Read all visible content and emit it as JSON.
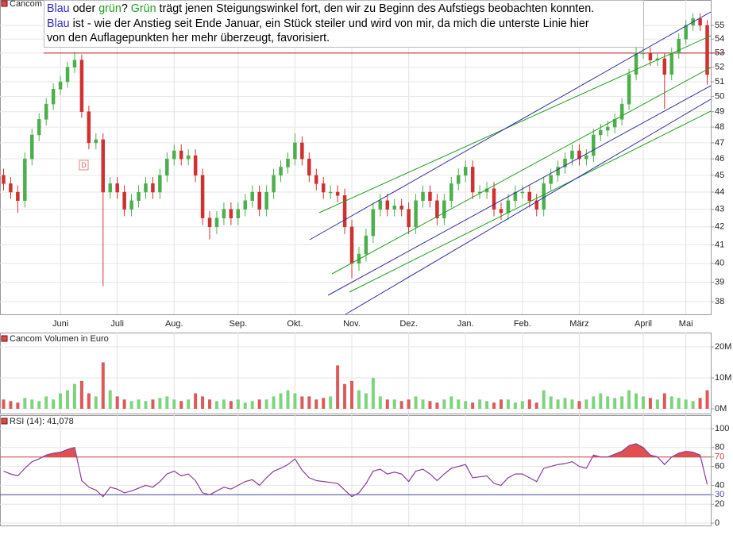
{
  "chart_data": [
    {
      "type": "candlestick",
      "title": "Cancom",
      "log_scale": true,
      "grid": true,
      "up_color": "#4caf4c",
      "down_color": "#d03030",
      "categories": [
        null,
        null,
        null,
        null,
        null,
        null,
        null,
        null,
        "Juni",
        null,
        null,
        null,
        null,
        null,
        null,
        null,
        "Juli",
        null,
        null,
        null,
        null,
        null,
        null,
        null,
        "Aug.",
        null,
        null,
        null,
        null,
        null,
        null,
        null,
        null,
        "Sep.",
        null,
        null,
        null,
        null,
        null,
        null,
        null,
        "Okt.",
        null,
        null,
        null,
        null,
        null,
        null,
        null,
        "Nov.",
        null,
        null,
        null,
        null,
        null,
        null,
        null,
        "Dez.",
        null,
        null,
        null,
        null,
        null,
        null,
        null,
        "Jan.",
        null,
        null,
        null,
        null,
        null,
        null,
        null,
        "Feb.",
        null,
        null,
        null,
        null,
        null,
        null,
        null,
        "März",
        null,
        null,
        null,
        null,
        null,
        null,
        null,
        null,
        "April",
        null,
        null,
        null,
        null,
        null,
        "Mai",
        null,
        null,
        null
      ],
      "open": [
        45,
        44.5,
        44,
        43.5,
        46,
        47.5,
        48.5,
        49.5,
        50.5,
        51,
        52,
        52.5,
        49,
        47,
        47.2,
        44,
        44.5,
        44,
        43,
        43.5,
        44,
        44.5,
        44,
        45,
        46,
        46.5,
        46,
        46.2,
        45,
        42.5,
        42,
        42.5,
        43,
        42.5,
        43,
        43.5,
        44,
        43,
        44,
        45,
        45.5,
        46,
        47,
        46,
        45,
        44.5,
        44,
        44,
        43.8,
        42,
        40,
        40.5,
        41.5,
        43,
        43.5,
        43,
        43.2,
        43,
        42,
        43.5,
        44,
        43.5,
        42.5,
        43.5,
        44.5,
        45,
        45.5,
        44,
        44,
        44.2,
        43,
        42.8,
        43.5,
        44,
        44,
        43.5,
        43,
        44.5,
        45,
        45.5,
        46,
        46.5,
        46,
        46.2,
        47.5,
        47.8,
        48,
        48.5,
        49.5,
        51.5,
        53,
        53,
        52.5,
        52.6,
        51.5,
        53,
        54,
        55,
        55.5,
        55
      ],
      "high": [
        45.4,
        44.9,
        44.4,
        46.4,
        47.9,
        48.9,
        49.9,
        50.9,
        51.4,
        52.4,
        53.1,
        52.9,
        49.4,
        47.6,
        47.6,
        44.9,
        44.9,
        44.4,
        43.9,
        44.4,
        44.9,
        44.9,
        45.4,
        46.4,
        46.9,
        46.9,
        46.6,
        46.6,
        45.4,
        42.9,
        42.9,
        43.4,
        43.4,
        43.4,
        43.9,
        44.4,
        44.4,
        44.4,
        45.4,
        45.9,
        46.4,
        47.6,
        47.4,
        46.4,
        45.4,
        44.9,
        44.4,
        44.4,
        44.2,
        42.4,
        40.9,
        41.9,
        43.4,
        43.9,
        43.9,
        43.6,
        43.6,
        43.4,
        43.9,
        44.4,
        44.4,
        43.9,
        43.9,
        44.9,
        45.4,
        45.9,
        45.9,
        44.4,
        44.6,
        44.6,
        43.4,
        43.9,
        44.4,
        44.4,
        44.4,
        43.9,
        44.9,
        45.4,
        45.9,
        46.4,
        46.9,
        46.9,
        46.6,
        47.9,
        48.2,
        48.4,
        48.9,
        49.9,
        51.9,
        53.4,
        53.4,
        53.4,
        53,
        53,
        53.4,
        54.4,
        55.4,
        55.9,
        55.9,
        55.4
      ],
      "low": [
        44.1,
        43.6,
        42.8,
        43.1,
        45.6,
        47.1,
        48.1,
        49.1,
        50.1,
        50.6,
        51.6,
        48.6,
        46.6,
        46.6,
        38.8,
        43.6,
        43.6,
        42.6,
        42.6,
        43.1,
        43.6,
        43.6,
        43.6,
        44.6,
        45.6,
        45.6,
        45.6,
        44.6,
        42.1,
        41.3,
        41.6,
        42.1,
        42.1,
        42.1,
        42.6,
        43.1,
        42.6,
        42.6,
        43.6,
        44.6,
        45.1,
        45.6,
        45.6,
        44.6,
        44.1,
        43.6,
        43.6,
        43.4,
        41.6,
        39.2,
        39.6,
        40.1,
        41.1,
        42.6,
        42.6,
        42.6,
        42.6,
        41.6,
        41.6,
        43.1,
        43.1,
        42.1,
        42.1,
        43.1,
        44.1,
        44.6,
        43.6,
        43.6,
        43.6,
        42.6,
        42.4,
        42.4,
        43.1,
        43.6,
        43.1,
        42.6,
        42.6,
        44.1,
        44.6,
        45.1,
        45.6,
        45.6,
        45.6,
        45.8,
        47.1,
        47.4,
        47.6,
        48.1,
        49.1,
        51.1,
        52.6,
        52.1,
        52.1,
        49.2,
        51.1,
        52.6,
        53.6,
        54.6,
        54.6,
        50.8
      ],
      "close": [
        44.5,
        44,
        43.5,
        46,
        47.5,
        48.5,
        49.5,
        50.5,
        51,
        52,
        52.5,
        49,
        47,
        47.2,
        44,
        44.5,
        44,
        43,
        43.5,
        44,
        44.5,
        44,
        45,
        46,
        46.5,
        46,
        46.2,
        45,
        42.5,
        42,
        42.5,
        43,
        42.5,
        43,
        43.5,
        44,
        43,
        44,
        45,
        45.5,
        46,
        47,
        46,
        45,
        44.5,
        44,
        44,
        43.8,
        42,
        40,
        40.5,
        41.5,
        43,
        43.5,
        43,
        43.2,
        43,
        42,
        43.5,
        44,
        43.5,
        42.5,
        43.5,
        44.5,
        45,
        45.5,
        44,
        44,
        44.2,
        43,
        42.8,
        43.5,
        44,
        44,
        43.5,
        43,
        44.5,
        45,
        45.5,
        46,
        46.5,
        46,
        46.2,
        47.5,
        47.8,
        48,
        48.5,
        49.5,
        51.5,
        53,
        53,
        52.5,
        52.6,
        51.5,
        53,
        54,
        55,
        55.5,
        55,
        51.5
      ],
      "ylim": [
        37.4,
        56.9
      ],
      "yticks": [
        38,
        39,
        40,
        41,
        42,
        43,
        44,
        45,
        46,
        47,
        48,
        49,
        50,
        51,
        52,
        53,
        54,
        55
      ],
      "reference_lines": [
        {
          "value": 53,
          "color": "#b02020"
        }
      ],
      "dividend_marker": "D",
      "annotation": [
        [
          {
            "text": "Blau",
            "color": "#3030c0"
          },
          {
            "text": " oder ",
            "color": "#000000"
          },
          {
            "text": "grün",
            "color": "#20a020"
          },
          {
            "text": "? ",
            "color": "#000000"
          },
          {
            "text": "Grün",
            "color": "#20a020"
          },
          {
            "text": " trägt jenen Steigungswinkel fort, den wir zu Beginn des Aufstiegs beobachten konnten.",
            "color": "#000000"
          }
        ],
        [
          {
            "text": "Blau",
            "color": "#3030c0"
          },
          {
            "text": " ist - wie der Anstieg seit Ende Januar, ein Stück steiler und wird von mir, da mich die unterste Linie hier",
            "color": "#000000"
          }
        ],
        [
          {
            "text": "von den Auflagepunkten her mehr überzeugt, favorisiert.",
            "color": "#000000"
          }
        ]
      ]
    },
    {
      "type": "bar",
      "title": "Cancom Volumen in Euro",
      "grid": true,
      "up_color": "#7ed47e",
      "down_color": "#dc5a5a",
      "values": [
        3,
        2.5,
        2,
        3.5,
        3,
        2.5,
        4,
        3,
        5,
        6,
        8,
        9,
        5,
        4,
        15,
        6,
        4,
        3,
        2.5,
        3,
        2.5,
        3,
        3.5,
        4,
        3,
        2.5,
        3,
        5,
        4,
        3,
        2.5,
        3,
        2.5,
        3,
        2,
        2.5,
        3,
        3,
        4,
        5,
        6,
        5,
        4,
        4,
        3,
        3.5,
        4,
        14,
        8,
        9,
        6,
        5,
        10,
        4,
        3,
        3,
        2.5,
        3,
        4,
        3,
        2.5,
        2,
        3,
        4,
        3,
        2.5,
        2,
        3,
        2.5,
        2,
        3,
        3,
        2,
        2.5,
        3,
        2,
        6,
        4,
        3,
        3.5,
        3,
        2.5,
        3,
        4,
        5,
        4,
        3.5,
        4,
        6,
        5,
        4,
        3.5,
        3,
        5,
        4,
        3.5,
        3,
        2.5,
        3.5,
        6
      ],
      "ylim": [
        0,
        20
      ],
      "yticks": [
        {
          "value": 0,
          "label": "0M"
        },
        {
          "value": 10,
          "label": "10M"
        },
        {
          "value": 20,
          "label": "20M"
        }
      ]
    },
    {
      "type": "line",
      "title": "RSI (14): 41,078",
      "grid": true,
      "color": "#8a3a9a",
      "fill_color": "#e05050",
      "fill_above": 70,
      "values": [
        55,
        52,
        50,
        58,
        65,
        68,
        72,
        74,
        75,
        78,
        80,
        45,
        38,
        35,
        28,
        38,
        36,
        32,
        34,
        37,
        40,
        38,
        44,
        52,
        55,
        50,
        52,
        45,
        32,
        30,
        34,
        38,
        36,
        40,
        44,
        46,
        40,
        48,
        55,
        58,
        62,
        68,
        56,
        48,
        45,
        44,
        43,
        42,
        35,
        28,
        32,
        42,
        55,
        57,
        52,
        54,
        52,
        44,
        55,
        57,
        52,
        45,
        52,
        58,
        60,
        62,
        48,
        49,
        50,
        42,
        40,
        48,
        52,
        52,
        48,
        44,
        58,
        60,
        62,
        63,
        65,
        60,
        58,
        72,
        70,
        70,
        73,
        76,
        82,
        84,
        80,
        72,
        70,
        62,
        70,
        74,
        76,
        75,
        72,
        41
      ],
      "ylim": [
        0,
        100
      ],
      "yticks": [
        0,
        20,
        30,
        40,
        60,
        70,
        80,
        100
      ],
      "reference_lines": [
        {
          "value": 70,
          "color": "#d04040"
        },
        {
          "value": 30,
          "color": "#4a4aa0"
        }
      ]
    }
  ]
}
